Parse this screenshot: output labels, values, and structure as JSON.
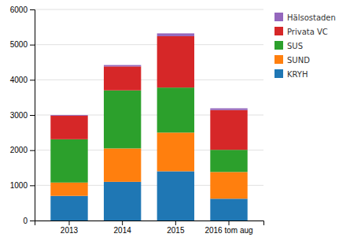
{
  "chart_data": {
    "type": "bar",
    "stacked": true,
    "categories": [
      "2013",
      "2014",
      "2015",
      "2016 tom aug"
    ],
    "series": [
      {
        "name": "KRYH",
        "values": [
          700,
          1100,
          1400,
          620
        ]
      },
      {
        "name": "SUND",
        "values": [
          380,
          950,
          1100,
          760
        ]
      },
      {
        "name": "SUS",
        "values": [
          1230,
          1650,
          1280,
          630
        ]
      },
      {
        "name": "Privata VC",
        "values": [
          670,
          680,
          1460,
          1130
        ]
      },
      {
        "name": "Hälsostaden",
        "values": [
          20,
          40,
          80,
          50
        ]
      }
    ],
    "ylim": [
      0,
      6000
    ],
    "yticks": [
      0,
      1000,
      2000,
      3000,
      4000,
      5000,
      6000
    ],
    "grid": true,
    "legend": "right"
  }
}
